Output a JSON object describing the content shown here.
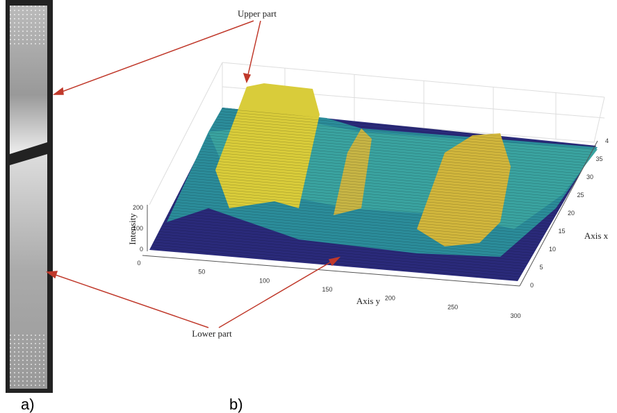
{
  "panel_a": {
    "label": "a)"
  },
  "panel_b": {
    "label": "b)",
    "annotations": {
      "upper": "Upper part",
      "lower": "Lower part"
    },
    "z_axis": {
      "title": "Intensity",
      "ticks": [
        "0",
        "100",
        "200"
      ]
    },
    "y_axis": {
      "title": "Axis y",
      "ticks": [
        "0",
        "50",
        "100",
        "150",
        "200",
        "250",
        "300"
      ]
    },
    "x_axis": {
      "title": "Axis x",
      "ticks": [
        "0",
        "5",
        "10",
        "15",
        "20",
        "25",
        "30",
        "35",
        "4"
      ]
    }
  }
}
